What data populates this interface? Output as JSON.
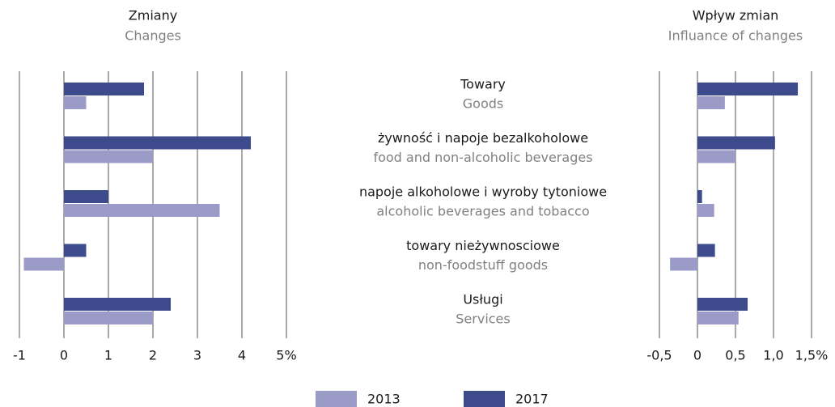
{
  "categories": [
    {
      "pl": "Towary",
      "en": "Goods"
    },
    {
      "pl": "żywność i napoje bezalkoholowe",
      "en": "food and non-alcoholic beverages"
    },
    {
      "pl": "napoje alkoholowe i wyroby tytoniowe",
      "en": "alcoholic beverages and tobacco"
    },
    {
      "pl": "towary nieżywnosciowe",
      "en": "non-foodstuff goods"
    },
    {
      "pl": "Usługi",
      "en": "Services"
    }
  ],
  "legend": [
    {
      "name": "2013",
      "color": "#9b9bc7"
    },
    {
      "name": "2017",
      "color": "#3d4a8c"
    }
  ],
  "chart_data": [
    {
      "type": "hbar",
      "title": "Zmiany",
      "subtitle": "Changes",
      "xlim": [
        -1,
        5
      ],
      "xticks": [
        -1,
        0,
        1,
        2,
        3,
        4,
        {
          "value": 5,
          "label": "5%"
        }
      ],
      "grid": true,
      "series": [
        {
          "values": [
            0.5,
            2.0,
            3.5,
            -0.9,
            2.0
          ]
        },
        {
          "values": [
            1.8,
            4.2,
            1.0,
            0.5,
            2.4
          ]
        }
      ]
    },
    {
      "type": "hbar",
      "title": "Wpływ zmian",
      "subtitle": "Influance of changes",
      "xlim": [
        -0.5,
        1.5
      ],
      "xticks": [
        {
          "value": -0.5,
          "label": "-0,5"
        },
        0,
        {
          "value": 0.5,
          "label": "0,5"
        },
        {
          "value": 1,
          "label": "1,0"
        },
        {
          "value": 1.5,
          "label": "1,5%"
        }
      ],
      "grid": true,
      "series": [
        {
          "values": [
            0.36,
            0.5,
            0.22,
            -0.36,
            0.54
          ]
        },
        {
          "values": [
            1.32,
            1.02,
            0.06,
            0.23,
            0.66
          ]
        }
      ]
    }
  ]
}
